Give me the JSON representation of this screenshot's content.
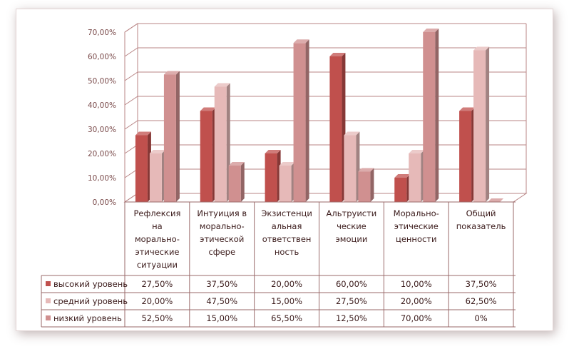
{
  "chart_data": {
    "type": "bar",
    "style": "3d-clustered-column-with-data-table",
    "title": "",
    "xlabel": "",
    "ylabel": "",
    "ylim": [
      0,
      70
    ],
    "y_ticks": [
      "0,00%",
      "10,00%",
      "20,00%",
      "30,00%",
      "40,00%",
      "50,00%",
      "60,00%",
      "70,00%"
    ],
    "grid": true,
    "legend_position": "data-table-left",
    "categories": [
      [
        "Рефлексия",
        "на",
        "морально-",
        "этические",
        "ситуации"
      ],
      [
        "Интуиция в",
        "морально-",
        "этической",
        "сфере"
      ],
      [
        "Экзистенци",
        "альная",
        "ответствен",
        "ность"
      ],
      [
        "Альтруисти",
        "ческие",
        "эмоции"
      ],
      [
        "Морально-",
        "этические",
        "ценности"
      ],
      [
        "Общий",
        "показатель"
      ]
    ],
    "series": [
      {
        "name": "высокий уровень",
        "color": "#c0504d",
        "values": [
          27.5,
          37.5,
          20.0,
          60.0,
          10.0,
          37.5
        ],
        "labels": [
          "27,50%",
          "37,50%",
          "20,00%",
          "60,00%",
          "10,00%",
          "37,50%"
        ]
      },
      {
        "name": "средний уровень",
        "color": "#e6b9b8",
        "values": [
          20.0,
          47.5,
          15.0,
          27.5,
          20.0,
          62.5
        ],
        "labels": [
          "20,00%",
          "47,50%",
          "15,00%",
          "27,50%",
          "20,00%",
          "62,50%"
        ]
      },
      {
        "name": "низкий уровень",
        "color": "#d09090",
        "values": [
          52.5,
          15.0,
          65.5,
          12.5,
          70.0,
          0
        ],
        "labels": [
          "52,50%",
          "15,00%",
          "65,50%",
          "12,50%",
          "70,00%",
          "0%"
        ]
      }
    ]
  }
}
